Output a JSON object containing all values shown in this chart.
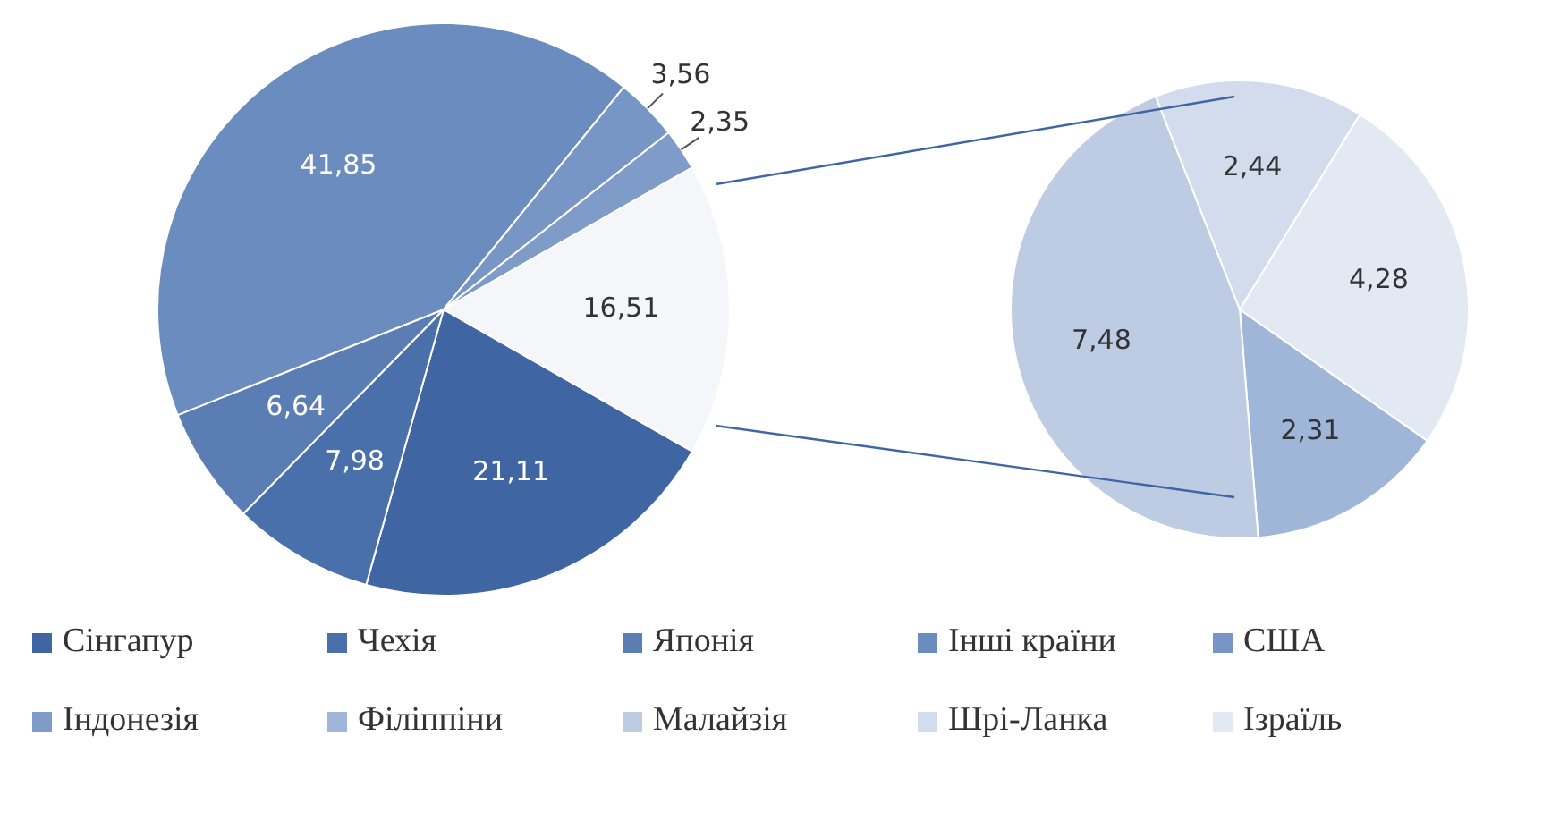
{
  "chart_data": [
    {
      "type": "pie",
      "categories": [
        "Сінгапур",
        "Чехія",
        "Японія",
        "Інші країни",
        "США",
        "Індонезія",
        null
      ],
      "values": [
        21.11,
        7.98,
        6.64,
        41.85,
        3.56,
        2.35,
        16.51
      ],
      "value_labels": [
        "21,11",
        "7,98",
        "6,64",
        "41,85",
        "3,56",
        "2,35",
        "16,51"
      ],
      "colors": [
        "#3f66a3",
        "#4a70ab",
        "#5a7db4",
        "#6b8cbf",
        "#7896c5",
        "#7f9bc7",
        "#f4f6fa"
      ],
      "legend": "bottom"
    },
    {
      "type": "pie",
      "categories": [
        "Філіппіни",
        "Малайзія",
        "Шрі-Ланка",
        "Ізраїль"
      ],
      "values": [
        2.31,
        7.48,
        2.44,
        4.28
      ],
      "value_labels": [
        "2,31",
        "7,48",
        "2,44",
        "4,28"
      ],
      "colors": [
        "#a0b6d9",
        "#bdcbe3",
        "#d2dcec",
        "#e3e9f3"
      ],
      "legend": "bottom"
    }
  ]
}
